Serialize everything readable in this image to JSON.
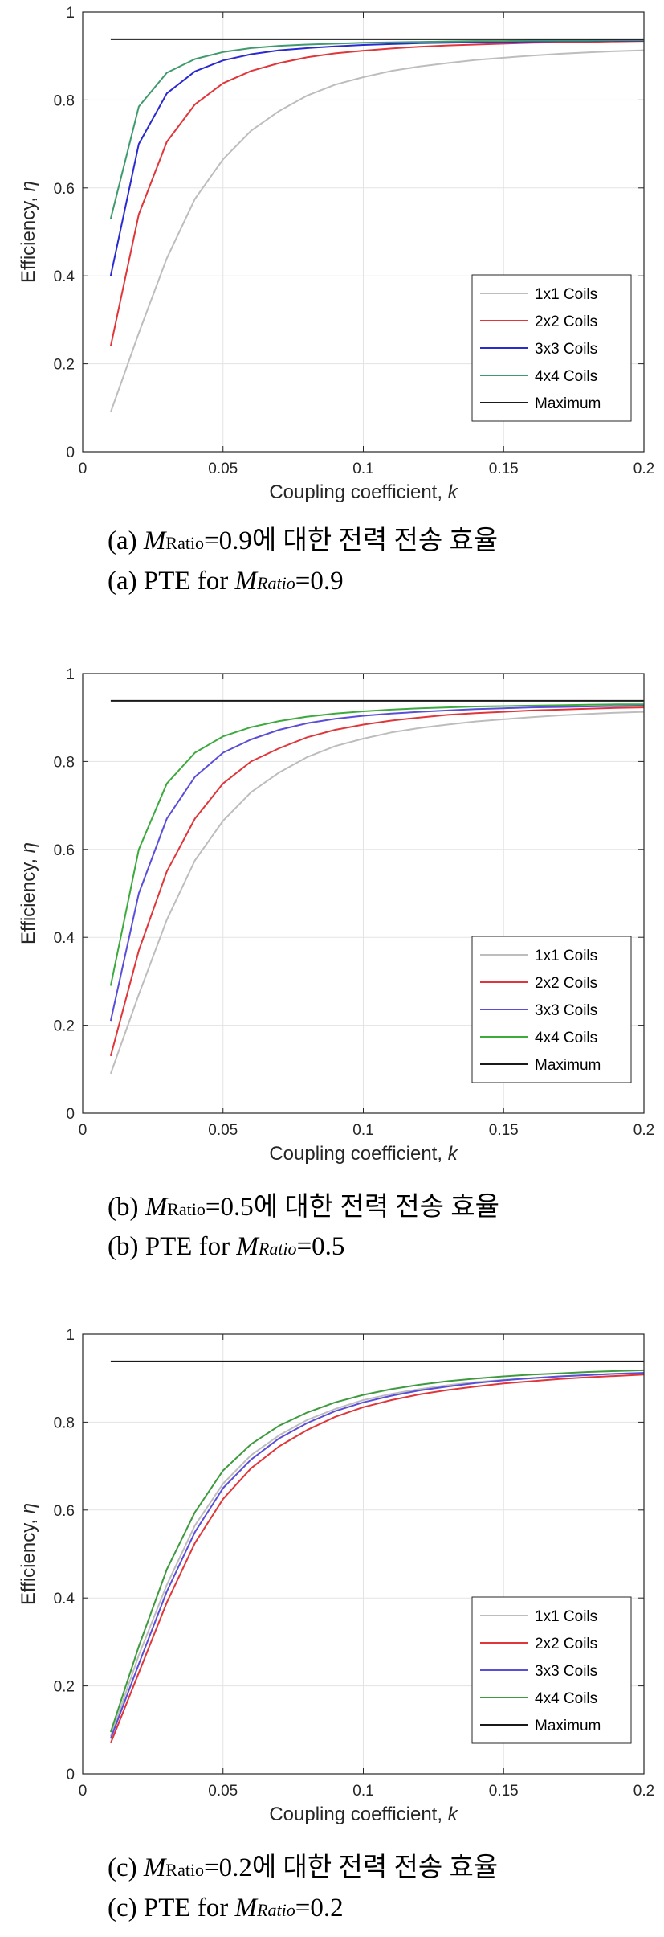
{
  "chart_data": [
    {
      "type": "line",
      "xlabel": "Coupling coefficient, ",
      "xlabel_var": "k",
      "ylabel": "Efficiency, ",
      "ylabel_var": "η",
      "xlim": [
        0,
        0.2
      ],
      "ylim": [
        0,
        1
      ],
      "xticks": [
        "0",
        "0.05",
        "0.1",
        "0.15",
        "0.2"
      ],
      "yticks": [
        "0",
        "0.2",
        "0.4",
        "0.6",
        "0.8",
        "1"
      ],
      "grid": true,
      "legend_position": "bottom-right",
      "x": [
        0.01,
        0.02,
        0.03,
        0.04,
        0.05,
        0.06,
        0.07,
        0.08,
        0.09,
        0.1,
        0.11,
        0.12,
        0.13,
        0.14,
        0.15,
        0.16,
        0.17,
        0.18,
        0.19,
        0.2
      ],
      "series": [
        {
          "name": "1x1 Coils",
          "color": "#bdbdbd",
          "values": [
            0.09,
            0.27,
            0.44,
            0.575,
            0.665,
            0.73,
            0.775,
            0.81,
            0.835,
            0.852,
            0.866,
            0.876,
            0.884,
            0.891,
            0.896,
            0.901,
            0.905,
            0.908,
            0.911,
            0.913
          ]
        },
        {
          "name": "2x2 Coils",
          "color": "#e0363a",
          "values": [
            0.24,
            0.54,
            0.705,
            0.79,
            0.838,
            0.866,
            0.884,
            0.897,
            0.906,
            0.912,
            0.917,
            0.921,
            0.924,
            0.926,
            0.928,
            0.93,
            0.931,
            0.932,
            0.933,
            0.934
          ]
        },
        {
          "name": "3x3 Coils",
          "color": "#2a2ad0",
          "values": [
            0.4,
            0.7,
            0.815,
            0.865,
            0.89,
            0.904,
            0.913,
            0.918,
            0.922,
            0.925,
            0.927,
            0.929,
            0.93,
            0.931,
            0.932,
            0.933,
            0.934,
            0.934,
            0.935,
            0.935
          ]
        },
        {
          "name": "4x4 Coils",
          "color": "#3f9a6e",
          "values": [
            0.53,
            0.785,
            0.862,
            0.893,
            0.909,
            0.918,
            0.923,
            0.926,
            0.928,
            0.93,
            0.931,
            0.932,
            0.933,
            0.934,
            0.934,
            0.935,
            0.935,
            0.935,
            0.936,
            0.936
          ]
        },
        {
          "name": "Maximum",
          "color": "#1a1a1a",
          "values": [
            0.938,
            0.938,
            0.938,
            0.938,
            0.938,
            0.938,
            0.938,
            0.938,
            0.938,
            0.938,
            0.938,
            0.938,
            0.938,
            0.938,
            0.938,
            0.938,
            0.938,
            0.938,
            0.938,
            0.938
          ]
        }
      ],
      "caption_ko": {
        "prefix": "(a) ",
        "m": "M",
        "sub": "Ratio",
        "rest": "=0.9에 대한 전력 전송 효율"
      },
      "caption_en": {
        "prefix": "(a) PTE for ",
        "m": "M",
        "sub": "Ratio",
        "rest": "=0.9"
      }
    },
    {
      "type": "line",
      "xlabel": "Coupling coefficient, ",
      "xlabel_var": "k",
      "ylabel": "Efficiency, ",
      "ylabel_var": "η",
      "xlim": [
        0,
        0.2
      ],
      "ylim": [
        0,
        1
      ],
      "xticks": [
        "0",
        "0.05",
        "0.1",
        "0.15",
        "0.2"
      ],
      "yticks": [
        "0",
        "0.2",
        "0.4",
        "0.6",
        "0.8",
        "1"
      ],
      "grid": true,
      "legend_position": "bottom-right",
      "x": [
        0.01,
        0.02,
        0.03,
        0.04,
        0.05,
        0.06,
        0.07,
        0.08,
        0.09,
        0.1,
        0.11,
        0.12,
        0.13,
        0.14,
        0.15,
        0.16,
        0.17,
        0.18,
        0.19,
        0.2
      ],
      "series": [
        {
          "name": "1x1 Coils",
          "color": "#bdbdbd",
          "values": [
            0.09,
            0.27,
            0.44,
            0.575,
            0.665,
            0.73,
            0.775,
            0.81,
            0.835,
            0.852,
            0.866,
            0.876,
            0.884,
            0.891,
            0.896,
            0.901,
            0.905,
            0.908,
            0.911,
            0.913
          ]
        },
        {
          "name": "2x2 Coils",
          "color": "#e0363a",
          "values": [
            0.13,
            0.37,
            0.55,
            0.67,
            0.75,
            0.8,
            0.83,
            0.855,
            0.872,
            0.884,
            0.893,
            0.9,
            0.906,
            0.91,
            0.913,
            0.916,
            0.918,
            0.92,
            0.922,
            0.923
          ]
        },
        {
          "name": "3x3 Coils",
          "color": "#5a4ed8",
          "values": [
            0.21,
            0.5,
            0.67,
            0.765,
            0.82,
            0.85,
            0.872,
            0.887,
            0.897,
            0.904,
            0.909,
            0.913,
            0.916,
            0.919,
            0.921,
            0.923,
            0.924,
            0.925,
            0.926,
            0.927
          ]
        },
        {
          "name": "4x4 Coils",
          "color": "#3daa3d",
          "values": [
            0.29,
            0.6,
            0.75,
            0.82,
            0.857,
            0.878,
            0.892,
            0.902,
            0.909,
            0.914,
            0.918,
            0.921,
            0.923,
            0.925,
            0.926,
            0.927,
            0.928,
            0.929,
            0.93,
            0.93
          ]
        },
        {
          "name": "Maximum",
          "color": "#1a1a1a",
          "values": [
            0.938,
            0.938,
            0.938,
            0.938,
            0.938,
            0.938,
            0.938,
            0.938,
            0.938,
            0.938,
            0.938,
            0.938,
            0.938,
            0.938,
            0.938,
            0.938,
            0.938,
            0.938,
            0.938,
            0.938
          ]
        }
      ],
      "caption_ko": {
        "prefix": "(b) ",
        "m": "M",
        "sub": "Ratio",
        "rest": "=0.5에 대한 전력 전송 효율"
      },
      "caption_en": {
        "prefix": "(b) PTE for ",
        "m": "M",
        "sub": "Ratio",
        "rest": "=0.5"
      }
    },
    {
      "type": "line",
      "xlabel": "Coupling coefficient, ",
      "xlabel_var": "k",
      "ylabel": "Efficiency, ",
      "ylabel_var": "η",
      "xlim": [
        0,
        0.2
      ],
      "ylim": [
        0,
        1
      ],
      "xticks": [
        "0",
        "0.05",
        "0.1",
        "0.15",
        "0.2"
      ],
      "yticks": [
        "0",
        "0.2",
        "0.4",
        "0.6",
        "0.8",
        "1"
      ],
      "grid": true,
      "legend_position": "bottom-right",
      "x": [
        0.01,
        0.02,
        0.03,
        0.04,
        0.05,
        0.06,
        0.07,
        0.08,
        0.09,
        0.1,
        0.11,
        0.12,
        0.13,
        0.14,
        0.15,
        0.16,
        0.17,
        0.18,
        0.19,
        0.2
      ],
      "series": [
        {
          "name": "1x1 Coils",
          "color": "#bdbdbd",
          "values": [
            0.085,
            0.27,
            0.43,
            0.565,
            0.66,
            0.725,
            0.77,
            0.805,
            0.83,
            0.85,
            0.864,
            0.875,
            0.884,
            0.891,
            0.896,
            0.9,
            0.904,
            0.907,
            0.91,
            0.912
          ]
        },
        {
          "name": "2x2 Coils",
          "color": "#e0363a",
          "values": [
            0.07,
            0.23,
            0.39,
            0.525,
            0.625,
            0.695,
            0.745,
            0.782,
            0.812,
            0.834,
            0.85,
            0.863,
            0.873,
            0.881,
            0.888,
            0.893,
            0.898,
            0.902,
            0.905,
            0.908
          ]
        },
        {
          "name": "3x3 Coils",
          "color": "#5a4ed8",
          "values": [
            0.08,
            0.25,
            0.415,
            0.55,
            0.65,
            0.715,
            0.763,
            0.798,
            0.825,
            0.845,
            0.86,
            0.872,
            0.881,
            0.889,
            0.895,
            0.9,
            0.904,
            0.907,
            0.91,
            0.912
          ]
        },
        {
          "name": "4x4 Coils",
          "color": "#3e9a3e",
          "values": [
            0.095,
            0.29,
            0.465,
            0.595,
            0.69,
            0.75,
            0.792,
            0.822,
            0.845,
            0.862,
            0.875,
            0.885,
            0.893,
            0.899,
            0.904,
            0.908,
            0.911,
            0.914,
            0.916,
            0.918
          ]
        },
        {
          "name": "Maximum",
          "color": "#1a1a1a",
          "values": [
            0.938,
            0.938,
            0.938,
            0.938,
            0.938,
            0.938,
            0.938,
            0.938,
            0.938,
            0.938,
            0.938,
            0.938,
            0.938,
            0.938,
            0.938,
            0.938,
            0.938,
            0.938,
            0.938,
            0.938
          ]
        }
      ],
      "caption_ko": {
        "prefix": "(c) ",
        "m": "M",
        "sub": "Ratio",
        "rest": "=0.2에 대한 전력 전송 효율"
      },
      "caption_en": {
        "prefix": "(c) PTE for ",
        "m": "M",
        "sub": "Ratio",
        "rest": "=0.2"
      }
    }
  ]
}
